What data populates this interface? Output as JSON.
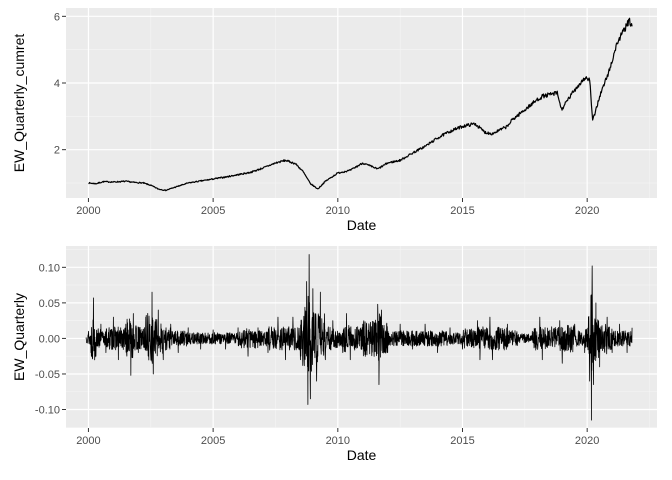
{
  "chart_data": [
    {
      "type": "line",
      "xlabel": "Date",
      "ylabel": "EW_Quarterly_cumret",
      "xlim": [
        1999.1,
        2022.8
      ],
      "ylim": [
        0.55,
        6.25
      ],
      "x_ticks": [
        2000,
        2005,
        2010,
        2015,
        2020
      ],
      "x_tick_labels": [
        "2000",
        "2005",
        "2010",
        "2015",
        "2020"
      ],
      "y_ticks": [
        2,
        4,
        6
      ],
      "y_tick_labels": [
        "2",
        "4",
        "6"
      ],
      "grid": true,
      "series": [
        {
          "points": [
            [
              2000.0,
              1.0
            ],
            [
              2000.3,
              0.98
            ],
            [
              2000.6,
              1.04
            ],
            [
              2001.0,
              1.03
            ],
            [
              2001.5,
              1.05
            ],
            [
              2001.8,
              1.02
            ],
            [
              2002.2,
              1.0
            ],
            [
              2002.5,
              0.93
            ],
            [
              2002.8,
              0.82
            ],
            [
              2003.1,
              0.78
            ],
            [
              2003.5,
              0.88
            ],
            [
              2004.0,
              1.0
            ],
            [
              2004.5,
              1.06
            ],
            [
              2005.0,
              1.12
            ],
            [
              2005.5,
              1.18
            ],
            [
              2006.0,
              1.25
            ],
            [
              2006.5,
              1.32
            ],
            [
              2007.0,
              1.45
            ],
            [
              2007.5,
              1.6
            ],
            [
              2007.9,
              1.68
            ],
            [
              2008.3,
              1.58
            ],
            [
              2008.6,
              1.35
            ],
            [
              2008.9,
              0.98
            ],
            [
              2009.2,
              0.82
            ],
            [
              2009.5,
              1.05
            ],
            [
              2010.0,
              1.3
            ],
            [
              2010.5,
              1.38
            ],
            [
              2011.0,
              1.6
            ],
            [
              2011.6,
              1.42
            ],
            [
              2012.0,
              1.6
            ],
            [
              2012.5,
              1.68
            ],
            [
              2013.0,
              1.9
            ],
            [
              2013.5,
              2.1
            ],
            [
              2014.0,
              2.35
            ],
            [
              2014.5,
              2.55
            ],
            [
              2015.0,
              2.7
            ],
            [
              2015.5,
              2.78
            ],
            [
              2015.9,
              2.52
            ],
            [
              2016.2,
              2.48
            ],
            [
              2016.8,
              2.7
            ],
            [
              2017.0,
              2.9
            ],
            [
              2017.5,
              3.2
            ],
            [
              2018.0,
              3.5
            ],
            [
              2018.2,
              3.6
            ],
            [
              2018.8,
              3.7
            ],
            [
              2018.97,
              3.2
            ],
            [
              2019.5,
              3.8
            ],
            [
              2019.9,
              4.15
            ],
            [
              2020.1,
              4.1
            ],
            [
              2020.22,
              2.85
            ],
            [
              2020.5,
              3.6
            ],
            [
              2020.9,
              4.4
            ],
            [
              2021.2,
              5.2
            ],
            [
              2021.6,
              5.75
            ],
            [
              2021.7,
              5.85
            ],
            [
              2021.8,
              5.7
            ]
          ]
        }
      ]
    },
    {
      "type": "line",
      "xlabel": "Date",
      "ylabel": "EW_Quarterly",
      "xlim": [
        1999.1,
        2022.8
      ],
      "ylim": [
        -0.126,
        0.13
      ],
      "x_ticks": [
        2000,
        2005,
        2010,
        2015,
        2020
      ],
      "x_tick_labels": [
        "2000",
        "2005",
        "2010",
        "2015",
        "2020"
      ],
      "y_ticks": [
        -0.1,
        -0.05,
        0,
        0.05,
        0.1
      ],
      "y_tick_labels": [
        "-0.10",
        "-0.05",
        "0.00",
        "0.05",
        "0.10"
      ],
      "grid": true,
      "series": [
        {
          "points": [
            [
              1999.9,
              0.0
            ],
            [
              2000.0,
              0.01
            ],
            [
              2000.1,
              -0.02
            ],
            [
              2000.2,
              0.057
            ],
            [
              2000.3,
              -0.025
            ],
            [
              2000.5,
              0.02
            ],
            [
              2000.7,
              -0.02
            ],
            [
              2001.0,
              0.03
            ],
            [
              2001.2,
              -0.03
            ],
            [
              2001.5,
              0.02
            ],
            [
              2001.7,
              -0.052
            ],
            [
              2001.8,
              0.035
            ],
            [
              2002.0,
              -0.02
            ],
            [
              2002.3,
              0.03
            ],
            [
              2002.55,
              0.065
            ],
            [
              2002.6,
              -0.05
            ],
            [
              2002.8,
              0.04
            ],
            [
              2003.0,
              -0.03
            ],
            [
              2003.3,
              0.02
            ],
            [
              2003.6,
              -0.02
            ],
            [
              2004.0,
              0.015
            ],
            [
              2004.5,
              -0.015
            ],
            [
              2005.0,
              0.012
            ],
            [
              2005.5,
              -0.015
            ],
            [
              2006.0,
              0.015
            ],
            [
              2006.4,
              -0.025
            ],
            [
              2006.8,
              0.015
            ],
            [
              2007.2,
              -0.02
            ],
            [
              2007.6,
              0.03
            ],
            [
              2007.9,
              -0.03
            ],
            [
              2008.2,
              0.03
            ],
            [
              2008.5,
              -0.03
            ],
            [
              2008.75,
              0.08
            ],
            [
              2008.8,
              -0.093
            ],
            [
              2008.85,
              0.118
            ],
            [
              2008.9,
              -0.085
            ],
            [
              2009.0,
              0.07
            ],
            [
              2009.15,
              -0.06
            ],
            [
              2009.3,
              0.065
            ],
            [
              2009.5,
              -0.03
            ],
            [
              2009.8,
              0.025
            ],
            [
              2010.2,
              -0.02
            ],
            [
              2010.35,
              0.035
            ],
            [
              2010.5,
              -0.03
            ],
            [
              2011.0,
              0.02
            ],
            [
              2011.6,
              0.048
            ],
            [
              2011.65,
              -0.065
            ],
            [
              2011.75,
              0.04
            ],
            [
              2012.0,
              -0.02
            ],
            [
              2012.5,
              0.02
            ],
            [
              2013.0,
              -0.015
            ],
            [
              2013.5,
              0.02
            ],
            [
              2014.0,
              -0.02
            ],
            [
              2014.5,
              0.015
            ],
            [
              2015.0,
              -0.015
            ],
            [
              2015.6,
              0.025
            ],
            [
              2015.7,
              -0.03
            ],
            [
              2016.1,
              0.03
            ],
            [
              2016.2,
              -0.03
            ],
            [
              2016.8,
              0.02
            ],
            [
              2017.2,
              -0.01
            ],
            [
              2017.8,
              0.01
            ],
            [
              2018.1,
              0.03
            ],
            [
              2018.2,
              -0.03
            ],
            [
              2018.9,
              0.025
            ],
            [
              2019.0,
              -0.035
            ],
            [
              2019.5,
              0.02
            ],
            [
              2019.9,
              -0.02
            ],
            [
              2020.05,
              0.03
            ],
            [
              2020.1,
              -0.06
            ],
            [
              2020.15,
              0.06
            ],
            [
              2020.17,
              -0.115
            ],
            [
              2020.2,
              0.102
            ],
            [
              2020.25,
              -0.065
            ],
            [
              2020.35,
              0.05
            ],
            [
              2020.5,
              -0.04
            ],
            [
              2020.8,
              0.03
            ],
            [
              2021.0,
              -0.02
            ],
            [
              2021.3,
              0.02
            ],
            [
              2021.6,
              -0.02
            ],
            [
              2021.8,
              0.015
            ]
          ]
        }
      ]
    }
  ]
}
